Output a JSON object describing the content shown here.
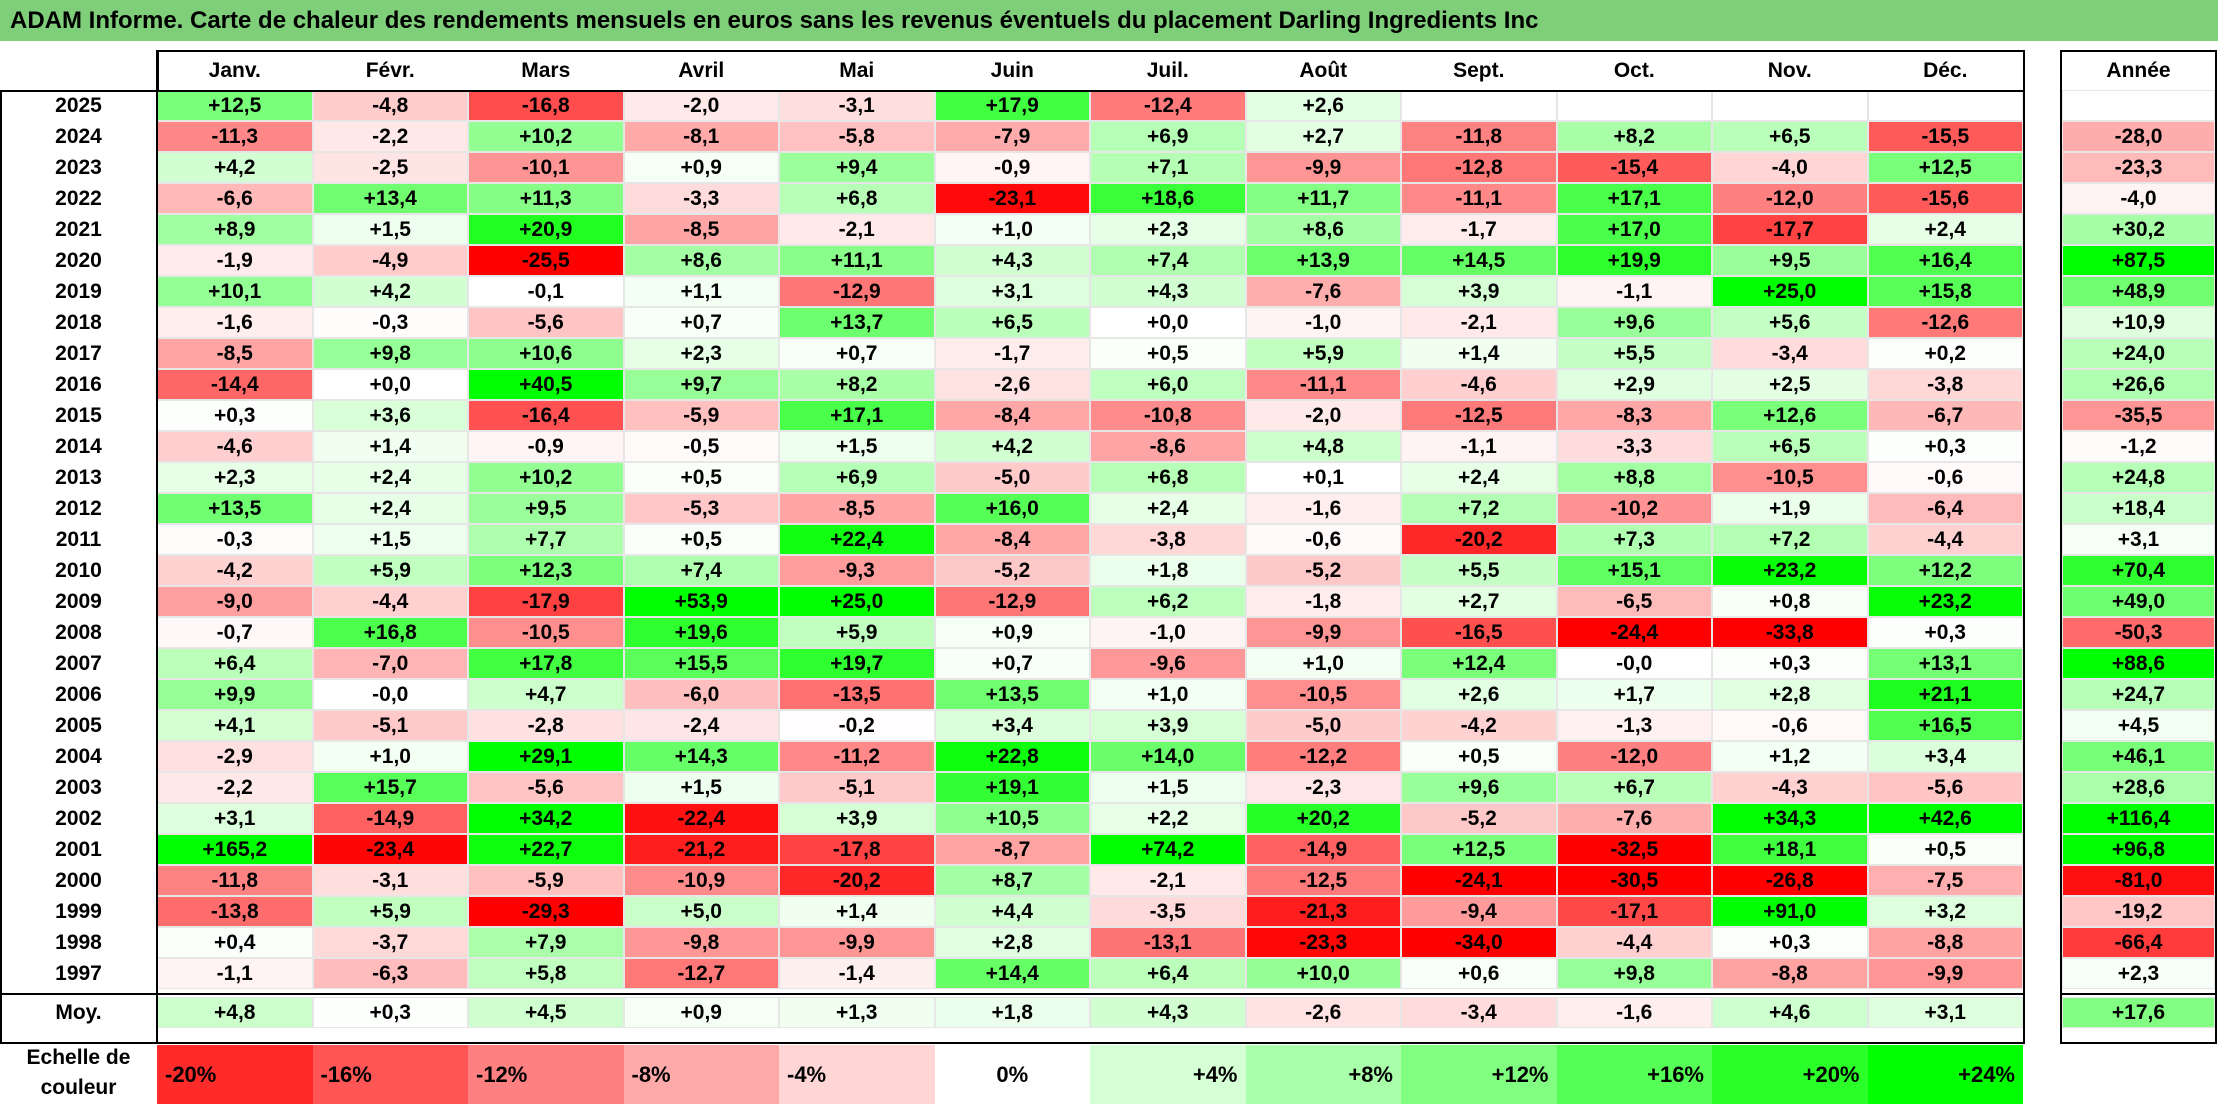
{
  "title": "ADAM Informe. Carte de chaleur des rendements mensuels en euros sans les revenus éventuels du placement Darling Ingredients Inc",
  "chart_data": {
    "type": "heatmap",
    "columns": [
      "Janv.",
      "Févr.",
      "Mars",
      "Avril",
      "Mai",
      "Juin",
      "Juil.",
      "Août",
      "Sept.",
      "Oct.",
      "Nov.",
      "Déc."
    ],
    "annual_header": "Année",
    "rows": [
      {
        "year": "2025",
        "values": [
          "+12,5",
          "-4,8",
          "-16,8",
          "-2,0",
          "-3,1",
          "+17,9",
          "-12,4",
          "+2,6",
          "",
          "",
          "",
          ""
        ],
        "annual": ""
      },
      {
        "year": "2024",
        "values": [
          "-11,3",
          "-2,2",
          "+10,2",
          "-8,1",
          "-5,8",
          "-7,9",
          "+6,9",
          "+2,7",
          "-11,8",
          "+8,2",
          "+6,5",
          "-15,5"
        ],
        "annual": "-28,0"
      },
      {
        "year": "2023",
        "values": [
          "+4,2",
          "-2,5",
          "-10,1",
          "+0,9",
          "+9,4",
          "-0,9",
          "+7,1",
          "-9,9",
          "-12,8",
          "-15,4",
          "-4,0",
          "+12,5"
        ],
        "annual": "-23,3"
      },
      {
        "year": "2022",
        "values": [
          "-6,6",
          "+13,4",
          "+11,3",
          "-3,3",
          "+6,8",
          "-23,1",
          "+18,6",
          "+11,7",
          "-11,1",
          "+17,1",
          "-12,0",
          "-15,6"
        ],
        "annual": "-4,0"
      },
      {
        "year": "2021",
        "values": [
          "+8,9",
          "+1,5",
          "+20,9",
          "-8,5",
          "-2,1",
          "+1,0",
          "+2,3",
          "+8,6",
          "-1,7",
          "+17,0",
          "-17,7",
          "+2,4"
        ],
        "annual": "+30,2"
      },
      {
        "year": "2020",
        "values": [
          "-1,9",
          "-4,9",
          "-25,5",
          "+8,6",
          "+11,1",
          "+4,3",
          "+7,4",
          "+13,9",
          "+14,5",
          "+19,9",
          "+9,5",
          "+16,4"
        ],
        "annual": "+87,5"
      },
      {
        "year": "2019",
        "values": [
          "+10,1",
          "+4,2",
          "-0,1",
          "+1,1",
          "-12,9",
          "+3,1",
          "+4,3",
          "-7,6",
          "+3,9",
          "-1,1",
          "+25,0",
          "+15,8"
        ],
        "annual": "+48,9"
      },
      {
        "year": "2018",
        "values": [
          "-1,6",
          "-0,3",
          "-5,6",
          "+0,7",
          "+13,7",
          "+6,5",
          "+0,0",
          "-1,0",
          "-2,1",
          "+9,6",
          "+5,6",
          "-12,6"
        ],
        "annual": "+10,9"
      },
      {
        "year": "2017",
        "values": [
          "-8,5",
          "+9,8",
          "+10,6",
          "+2,3",
          "+0,7",
          "-1,7",
          "+0,5",
          "+5,9",
          "+1,4",
          "+5,5",
          "-3,4",
          "+0,2"
        ],
        "annual": "+24,0"
      },
      {
        "year": "2016",
        "values": [
          "-14,4",
          "+0,0",
          "+40,5",
          "+9,7",
          "+8,2",
          "-2,6",
          "+6,0",
          "-11,1",
          "-4,6",
          "+2,9",
          "+2,5",
          "-3,8"
        ],
        "annual": "+26,6"
      },
      {
        "year": "2015",
        "values": [
          "+0,3",
          "+3,6",
          "-16,4",
          "-5,9",
          "+17,1",
          "-8,4",
          "-10,8",
          "-2,0",
          "-12,5",
          "-8,3",
          "+12,6",
          "-6,7"
        ],
        "annual": "-35,5"
      },
      {
        "year": "2014",
        "values": [
          "-4,6",
          "+1,4",
          "-0,9",
          "-0,5",
          "+1,5",
          "+4,2",
          "-8,6",
          "+4,8",
          "-1,1",
          "-3,3",
          "+6,5",
          "+0,3"
        ],
        "annual": "-1,2"
      },
      {
        "year": "2013",
        "values": [
          "+2,3",
          "+2,4",
          "+10,2",
          "+0,5",
          "+6,9",
          "-5,0",
          "+6,8",
          "+0,1",
          "+2,4",
          "+8,8",
          "-10,5",
          "-0,6"
        ],
        "annual": "+24,8"
      },
      {
        "year": "2012",
        "values": [
          "+13,5",
          "+2,4",
          "+9,5",
          "-5,3",
          "-8,5",
          "+16,0",
          "+2,4",
          "-1,6",
          "+7,2",
          "-10,2",
          "+1,9",
          "-6,4"
        ],
        "annual": "+18,4"
      },
      {
        "year": "2011",
        "values": [
          "-0,3",
          "+1,5",
          "+7,7",
          "+0,5",
          "+22,4",
          "-8,4",
          "-3,8",
          "-0,6",
          "-20,2",
          "+7,3",
          "+7,2",
          "-4,4"
        ],
        "annual": "+3,1"
      },
      {
        "year": "2010",
        "values": [
          "-4,2",
          "+5,9",
          "+12,3",
          "+7,4",
          "-9,3",
          "-5,2",
          "+1,8",
          "-5,2",
          "+5,5",
          "+15,1",
          "+23,2",
          "+12,2"
        ],
        "annual": "+70,4"
      },
      {
        "year": "2009",
        "values": [
          "-9,0",
          "-4,4",
          "-17,9",
          "+53,9",
          "+25,0",
          "-12,9",
          "+6,2",
          "-1,8",
          "+2,7",
          "-6,5",
          "+0,8",
          "+23,2"
        ],
        "annual": "+49,0"
      },
      {
        "year": "2008",
        "values": [
          "-0,7",
          "+16,8",
          "-10,5",
          "+19,6",
          "+5,9",
          "+0,9",
          "-1,0",
          "-9,9",
          "-16,5",
          "-24,4",
          "-33,8",
          "+0,3"
        ],
        "annual": "-50,3"
      },
      {
        "year": "2007",
        "values": [
          "+6,4",
          "-7,0",
          "+17,8",
          "+15,5",
          "+19,7",
          "+0,7",
          "-9,6",
          "+1,0",
          "+12,4",
          "-0,0",
          "+0,3",
          "+13,1"
        ],
        "annual": "+88,6"
      },
      {
        "year": "2006",
        "values": [
          "+9,9",
          "-0,0",
          "+4,7",
          "-6,0",
          "-13,5",
          "+13,5",
          "+1,0",
          "-10,5",
          "+2,6",
          "+1,7",
          "+2,8",
          "+21,1"
        ],
        "annual": "+24,7"
      },
      {
        "year": "2005",
        "values": [
          "+4,1",
          "-5,1",
          "-2,8",
          "-2,4",
          "-0,2",
          "+3,4",
          "+3,9",
          "-5,0",
          "-4,2",
          "-1,3",
          "-0,6",
          "+16,5"
        ],
        "annual": "+4,5"
      },
      {
        "year": "2004",
        "values": [
          "-2,9",
          "+1,0",
          "+29,1",
          "+14,3",
          "-11,2",
          "+22,8",
          "+14,0",
          "-12,2",
          "+0,5",
          "-12,0",
          "+1,2",
          "+3,4"
        ],
        "annual": "+46,1"
      },
      {
        "year": "2003",
        "values": [
          "-2,2",
          "+15,7",
          "-5,6",
          "+1,5",
          "-5,1",
          "+19,1",
          "+1,5",
          "-2,3",
          "+9,6",
          "+6,7",
          "-4,3",
          "-5,6"
        ],
        "annual": "+28,6"
      },
      {
        "year": "2002",
        "values": [
          "+3,1",
          "-14,9",
          "+34,2",
          "-22,4",
          "+3,9",
          "+10,5",
          "+2,2",
          "+20,2",
          "-5,2",
          "-7,6",
          "+34,3",
          "+42,6"
        ],
        "annual": "+116,4"
      },
      {
        "year": "2001",
        "values": [
          "+165,2",
          "-23,4",
          "+22,7",
          "-21,2",
          "-17,8",
          "-8,7",
          "+74,2",
          "-14,9",
          "+12,5",
          "-32,5",
          "+18,1",
          "+0,5"
        ],
        "annual": "+96,8"
      },
      {
        "year": "2000",
        "values": [
          "-11,8",
          "-3,1",
          "-5,9",
          "-10,9",
          "-20,2",
          "+8,7",
          "-2,1",
          "-12,5",
          "-24,1",
          "-30,5",
          "-26,8",
          "-7,5"
        ],
        "annual": "-81,0"
      },
      {
        "year": "1999",
        "values": [
          "-13,8",
          "+5,9",
          "-29,3",
          "+5,0",
          "+1,4",
          "+4,4",
          "-3,5",
          "-21,3",
          "-9,4",
          "-17,1",
          "+91,0",
          "+3,2"
        ],
        "annual": "-19,2"
      },
      {
        "year": "1998",
        "values": [
          "+0,4",
          "-3,7",
          "+7,9",
          "-9,8",
          "-9,9",
          "+2,8",
          "-13,1",
          "-23,3",
          "-34,0",
          "-4,4",
          "+0,3",
          "-8,8"
        ],
        "annual": "-66,4"
      },
      {
        "year": "1997",
        "values": [
          "-1,1",
          "-6,3",
          "+5,8",
          "-12,7",
          "-1,4",
          "+14,4",
          "+6,4",
          "+10,0",
          "+0,6",
          "+9,8",
          "-8,8",
          "-9,9"
        ],
        "annual": "+2,3"
      }
    ],
    "average": {
      "label": "Moy.",
      "values": [
        "+4,8",
        "+0,3",
        "+4,5",
        "+0,9",
        "+1,3",
        "+1,8",
        "+4,3",
        "-2,6",
        "-3,4",
        "-1,6",
        "+4,6",
        "+3,1"
      ],
      "annual": "+17,6"
    },
    "scale": {
      "label": "Echelle de couleur",
      "stops": [
        "-20%",
        "-16%",
        "-12%",
        "-8%",
        "-4%",
        "0%",
        "+4%",
        "+8%",
        "+12%",
        "+16%",
        "+20%",
        "+24%"
      ]
    },
    "colors": {
      "negative": "#ff0000",
      "neutral": "#ffffff",
      "positive": "#00ff00",
      "title_bar": "#7fcf7a"
    }
  }
}
